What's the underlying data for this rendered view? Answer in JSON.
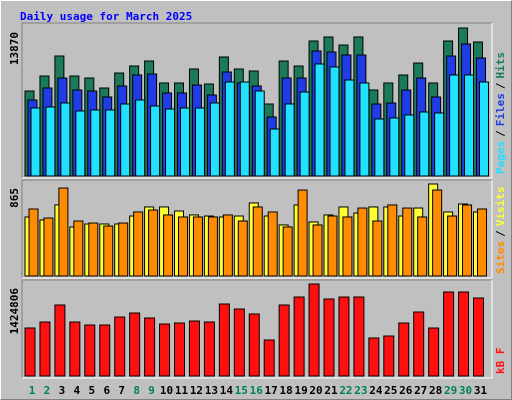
{
  "chart_data": [
    {
      "type": "bar",
      "title": "Daily usage for March 2025",
      "ylim": [
        0,
        13870
      ],
      "yticks": [
        13870
      ],
      "legend_separator": "/",
      "series": [
        {
          "name": "Hits",
          "color": "#1b7a5a",
          "values": [
            7966,
            9372,
            11246,
            9372,
            9184,
            8247,
            9653,
            10309,
            10778,
            8716,
            8716,
            10028,
            8622,
            11153,
            10028,
            9841,
            6748,
            10778,
            10309,
            12652,
            13027,
            12277,
            13027,
            8060,
            8716,
            9466,
            10590,
            8716,
            12652,
            13870,
            12558
          ]
        },
        {
          "name": "Files",
          "color": "#1f3ce6",
          "values": [
            7123,
            8247,
            9184,
            8060,
            7966,
            7404,
            8435,
            9466,
            9559,
            7779,
            7779,
            8528,
            7591,
            9747,
            8716,
            8435,
            5529,
            9184,
            9184,
            11715,
            11621,
            11340,
            11340,
            6748,
            6842,
            8060,
            9184,
            7404,
            11246,
            12371,
            11059
          ]
        },
        {
          "name": "Pages",
          "color": "#22e0ff",
          "values": [
            6373,
            6467,
            6842,
            6092,
            6186,
            6186,
            6748,
            7123,
            6560,
            6279,
            6373,
            6373,
            6842,
            8810,
            8810,
            7966,
            4405,
            6748,
            7872,
            10497,
            10215,
            8997,
            8716,
            5342,
            5436,
            5717,
            5998,
            5904,
            9466,
            9466,
            8810
          ]
        }
      ]
    },
    {
      "type": "bar",
      "ylim": [
        0,
        865
      ],
      "yticks": [
        865
      ],
      "legend_separator": "/",
      "series": [
        {
          "name": "Visits",
          "color": "#ffff33",
          "values": [
            555,
            527,
            668,
            461,
            489,
            489,
            489,
            564,
            649,
            649,
            611,
            574,
            564,
            555,
            564,
            687,
            564,
            480,
            668,
            508,
            574,
            649,
            592,
            649,
            649,
            564,
            639,
            865,
            602,
            677,
            602
          ]
        },
        {
          "name": "Sites",
          "color": "#ff8c00",
          "values": [
            630,
            545,
            827,
            517,
            498,
            470,
            498,
            602,
            620,
            574,
            555,
            555,
            555,
            574,
            517,
            649,
            602,
            461,
            808,
            480,
            564,
            555,
            639,
            517,
            668,
            639,
            555,
            808,
            564,
            668,
            630
          ]
        }
      ]
    },
    {
      "type": "bar",
      "ylim": [
        0,
        1424806
      ],
      "yticks": [
        1424806
      ],
      "categories": [
        "1",
        "2",
        "3",
        "4",
        "5",
        "6",
        "7",
        "8",
        "9",
        "10",
        "11",
        "12",
        "13",
        "14",
        "15",
        "16",
        "17",
        "18",
        "19",
        "20",
        "21",
        "22",
        "23",
        "24",
        "25",
        "26",
        "27",
        "28",
        "29",
        "30",
        "31"
      ],
      "category_colors": [
        "#00805c",
        "#00805c",
        "#000000",
        "#000000",
        "#000000",
        "#000000",
        "#000000",
        "#00805c",
        "#00805c",
        "#000000",
        "#000000",
        "#000000",
        "#000000",
        "#000000",
        "#00805c",
        "#00805c",
        "#000000",
        "#000000",
        "#000000",
        "#000000",
        "#000000",
        "#00805c",
        "#00805c",
        "#000000",
        "#000000",
        "#000000",
        "#000000",
        "#000000",
        "#00805c",
        "#00805c",
        "#000000"
      ],
      "series": [
        {
          "name": "kB F",
          "color": "#ff1010",
          "values": [
            743376,
            836298,
            1099554,
            836298,
            789837,
            789837,
            913720,
            975667,
            898246,
            805324,
            820811,
            851785,
            836298,
            1115041,
            1037615,
            960193,
            557532,
            1099554,
            1223450,
            1424806,
            1192476,
            1223450,
            1223450,
            588498,
            619472,
            820811,
            991163,
            743376,
            1300910,
            1300910,
            1207963
          ]
        }
      ]
    }
  ]
}
